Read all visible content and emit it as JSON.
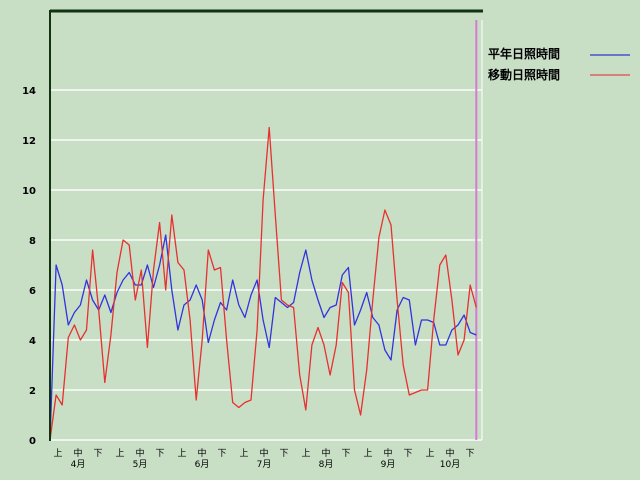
{
  "chart_data": {
    "type": "line",
    "title": "",
    "xlabel": "",
    "ylabel": "",
    "ylim": [
      0,
      17
    ],
    "yticks": [
      "0",
      "2",
      "4",
      "6",
      "8",
      "10",
      "12",
      "14"
    ],
    "grid": true,
    "legend_placement": "top-right",
    "months": [
      {
        "label": "4月",
        "thirds": [
          "上",
          "中",
          "下"
        ]
      },
      {
        "label": "5月",
        "thirds": [
          "上",
          "中",
          "下"
        ]
      },
      {
        "label": "6月",
        "thirds": [
          "上",
          "中",
          "下"
        ]
      },
      {
        "label": "7月",
        "thirds": [
          "上",
          "中",
          "下"
        ]
      },
      {
        "label": "8月",
        "thirds": [
          "上",
          "中",
          "下"
        ]
      },
      {
        "label": "9月",
        "thirds": [
          "上",
          "中",
          "下"
        ]
      },
      {
        "label": "10月",
        "thirds": [
          "上",
          "中",
          "下"
        ]
      }
    ],
    "marker_date": "10/28",
    "x": [
      "4/1",
      "4/4",
      "4/7",
      "4/10",
      "4/13",
      "4/16",
      "4/19",
      "4/22",
      "4/25",
      "4/28",
      "5/1",
      "5/4",
      "5/7",
      "5/10",
      "5/13",
      "5/16",
      "5/19",
      "5/22",
      "5/25",
      "5/28",
      "5/31",
      "6/3",
      "6/6",
      "6/9",
      "6/12",
      "6/15",
      "6/18",
      "6/21",
      "6/24",
      "6/27",
      "6/30",
      "7/3",
      "7/6",
      "7/9",
      "7/12",
      "7/15",
      "7/18",
      "7/21",
      "7/24",
      "7/27",
      "7/30",
      "8/2",
      "8/5",
      "8/8",
      "8/11",
      "8/14",
      "8/17",
      "8/20",
      "8/23",
      "8/26",
      "8/29",
      "9/1",
      "9/4",
      "9/7",
      "9/10",
      "9/13",
      "9/16",
      "9/19",
      "9/22",
      "9/25",
      "9/28",
      "10/1",
      "10/4",
      "10/7",
      "10/10",
      "10/13",
      "10/16",
      "10/19",
      "10/22",
      "10/25",
      "10/28"
    ],
    "series": [
      {
        "name": "平年日照時間",
        "color": "#3333dd",
        "values": [
          0,
          7.0,
          6.2,
          4.6,
          5.1,
          5.4,
          6.4,
          5.6,
          5.2,
          5.8,
          5.1,
          5.9,
          6.4,
          6.7,
          6.2,
          6.2,
          7.0,
          6.1,
          7.0,
          8.2,
          6.0,
          4.4,
          5.4,
          5.6,
          6.2,
          5.6,
          3.9,
          4.8,
          5.5,
          5.2,
          6.4,
          5.4,
          4.9,
          5.8,
          6.4,
          4.8,
          3.7,
          5.7,
          5.5,
          5.3,
          5.5,
          6.7,
          7.6,
          6.4,
          5.6,
          4.9,
          5.3,
          5.4,
          6.6,
          6.9,
          4.6,
          5.2,
          5.9,
          4.9,
          4.6,
          3.6,
          3.2,
          5.2,
          5.7,
          5.6,
          3.8,
          4.8,
          4.8,
          4.7,
          3.8,
          3.8,
          4.4,
          4.6,
          5.0,
          4.3,
          4.2
        ]
      },
      {
        "name": "移動日照時間",
        "color": "#e83030",
        "values": [
          0,
          1.8,
          1.4,
          4.1,
          4.6,
          4.0,
          4.4,
          7.6,
          5.2,
          2.3,
          4.2,
          6.7,
          8.0,
          7.8,
          5.6,
          6.8,
          3.7,
          6.8,
          8.7,
          6.0,
          9.0,
          7.1,
          6.8,
          4.8,
          1.6,
          4.0,
          7.6,
          6.8,
          6.9,
          4.0,
          1.5,
          1.3,
          1.5,
          1.6,
          4.4,
          9.6,
          12.5,
          9.0,
          5.6,
          5.4,
          5.3,
          2.6,
          1.2,
          3.8,
          4.5,
          3.8,
          2.6,
          3.8,
          6.3,
          5.9,
          2.0,
          1.0,
          2.8,
          5.6,
          8.1,
          9.2,
          8.6,
          5.6,
          3.0,
          1.8,
          1.9,
          2.0,
          2.0,
          4.8,
          7.0,
          7.4,
          5.6,
          3.4,
          4.0,
          6.2,
          5.3
        ]
      }
    ]
  }
}
